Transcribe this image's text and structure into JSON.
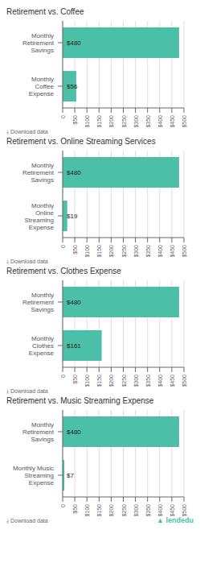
{
  "chart_data": [
    {
      "type": "bar",
      "orientation": "horizontal",
      "title": "Retirement vs. Coffee",
      "categories": [
        "Monthly Retirement Savings",
        "Monthly Coffee Expense"
      ],
      "values": [
        480,
        56
      ],
      "value_labels": [
        "$480",
        "$56"
      ],
      "data_labels": true,
      "color": "#4cbfa8",
      "xlim": [
        0,
        500
      ],
      "xticks": [
        0,
        {
          "value": 50,
          "label": "$50"
        },
        {
          "value": 100,
          "label": "$100"
        },
        {
          "value": 150,
          "label": "$150"
        },
        {
          "value": 200,
          "label": "$200"
        },
        {
          "value": 250,
          "label": "$250"
        },
        {
          "value": 300,
          "label": "$300"
        },
        {
          "value": 350,
          "label": "$350"
        },
        {
          "value": 400,
          "label": "$400"
        },
        {
          "value": 450,
          "label": "$450"
        },
        {
          "value": 500,
          "label": "$500"
        }
      ],
      "grid": true,
      "annotations": [
        "⤓  Download data"
      ]
    },
    {
      "type": "bar",
      "orientation": "horizontal",
      "title": "Retirement vs. Online Streaming Services",
      "categories": [
        "Monthly Retirement Savings",
        "Monthly Online Streaming Expense"
      ],
      "values": [
        480,
        19
      ],
      "value_labels": [
        "$480",
        "$19"
      ],
      "data_labels": true,
      "color": "#4cbfa8",
      "xlim": [
        0,
        500
      ],
      "xticks": [
        0,
        {
          "value": 50,
          "label": "$50"
        },
        {
          "value": 100,
          "label": "$100"
        },
        {
          "value": 150,
          "label": "$150"
        },
        {
          "value": 200,
          "label": "$200"
        },
        {
          "value": 250,
          "label": "$250"
        },
        {
          "value": 300,
          "label": "$300"
        },
        {
          "value": 350,
          "label": "$350"
        },
        {
          "value": 400,
          "label": "$400"
        },
        {
          "value": 450,
          "label": "$450"
        },
        {
          "value": 500,
          "label": "$500"
        }
      ],
      "grid": true,
      "annotations": [
        "⤓  Download data"
      ]
    },
    {
      "type": "bar",
      "orientation": "horizontal",
      "title": "Retirement vs. Clothes Expense",
      "categories": [
        "Monthly Retirement Savings",
        "Monthly Clothes Expense"
      ],
      "values": [
        480,
        161
      ],
      "value_labels": [
        "$480",
        "$161"
      ],
      "data_labels": true,
      "color": "#4cbfa8",
      "xlim": [
        0,
        500
      ],
      "xticks": [
        0,
        {
          "value": 50,
          "label": "$50"
        },
        {
          "value": 100,
          "label": "$100"
        },
        {
          "value": 150,
          "label": "$150"
        },
        {
          "value": 200,
          "label": "$200"
        },
        {
          "value": 250,
          "label": "$250"
        },
        {
          "value": 300,
          "label": "$300"
        },
        {
          "value": 350,
          "label": "$350"
        },
        {
          "value": 400,
          "label": "$400"
        },
        {
          "value": 450,
          "label": "$450"
        },
        {
          "value": 500,
          "label": "$500"
        }
      ],
      "grid": true,
      "annotations": [
        "⤓  Download data"
      ]
    },
    {
      "type": "bar",
      "orientation": "horizontal",
      "title": "Retirement vs. Music Streaming Expense",
      "categories": [
        "Monthly Retirement Savings",
        "Monthly Music Streaming Expense"
      ],
      "values": [
        480,
        7
      ],
      "value_labels": [
        "$480",
        "$7"
      ],
      "data_labels": true,
      "color": "#4cbfa8",
      "xlim": [
        0,
        500
      ],
      "xticks": [
        0,
        {
          "value": 50,
          "label": "$50"
        },
        {
          "value": 100,
          "label": "$100"
        },
        {
          "value": 150,
          "label": "$150"
        },
        {
          "value": 200,
          "label": "$200"
        },
        {
          "value": 250,
          "label": "$250"
        },
        {
          "value": 300,
          "label": "$300"
        },
        {
          "value": 350,
          "label": "$350"
        },
        {
          "value": 400,
          "label": "$400"
        },
        {
          "value": 450,
          "label": "$450"
        },
        {
          "value": 500,
          "label": "$500"
        }
      ],
      "grid": true,
      "annotations": [
        "⤓  Download data",
        "▲ lendedu"
      ]
    }
  ]
}
